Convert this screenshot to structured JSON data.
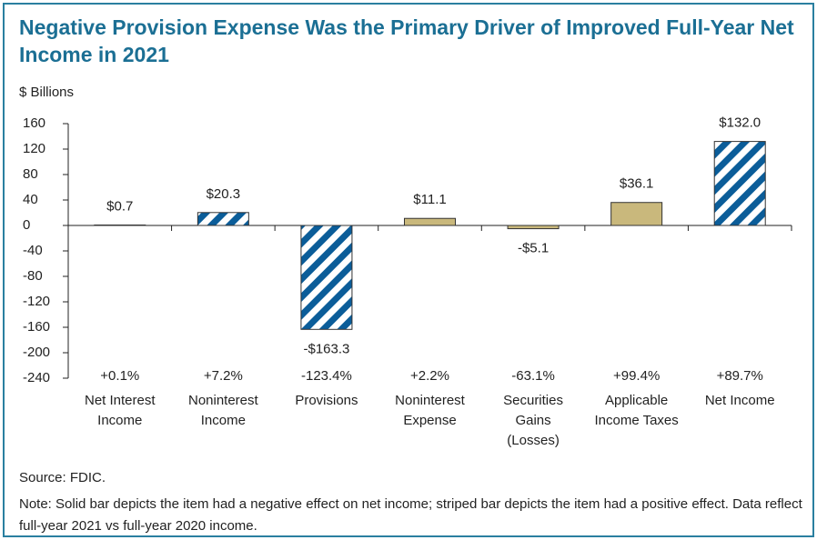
{
  "chart_data": {
    "type": "bar",
    "title": "Negative Provision Expense Was the Primary Driver of Improved Full-Year Net Income in 2021",
    "y_axis_label": "$ Billions",
    "categories": [
      "Net Interest Income",
      "Noninterest Income",
      "Provisions",
      "Noninterest Expense",
      "Securities Gains (Losses)",
      "Applicable Income Taxes",
      "Net Income"
    ],
    "values": [
      0.7,
      20.3,
      -163.3,
      11.1,
      -5.1,
      36.1,
      132.0
    ],
    "value_labels": [
      "$0.7",
      "$20.3",
      "-$163.3",
      "$11.1",
      "-$5.1",
      "$36.1",
      "$132.0"
    ],
    "change_labels": [
      "+0.1%",
      "+7.2%",
      "-123.4%",
      "+2.2%",
      "-63.1%",
      "+99.4%",
      "+89.7%"
    ],
    "styles": [
      "striped",
      "striped",
      "striped",
      "solid",
      "solid",
      "solid",
      "striped"
    ],
    "striped_color": "#0b5d99",
    "solid_color": "#c9b87c",
    "ylim": [
      -240,
      160
    ],
    "yticks": [
      -240,
      -200,
      -160,
      -120,
      -80,
      -40,
      0,
      40,
      80,
      120,
      160
    ],
    "grid": false,
    "source": "Source: FDIC.",
    "note": "Note: Solid bar depicts the item had a negative effect on net income; striped bar depicts the item had a positive effect. Data reflect full-year 2021 vs full-year 2020 income."
  }
}
